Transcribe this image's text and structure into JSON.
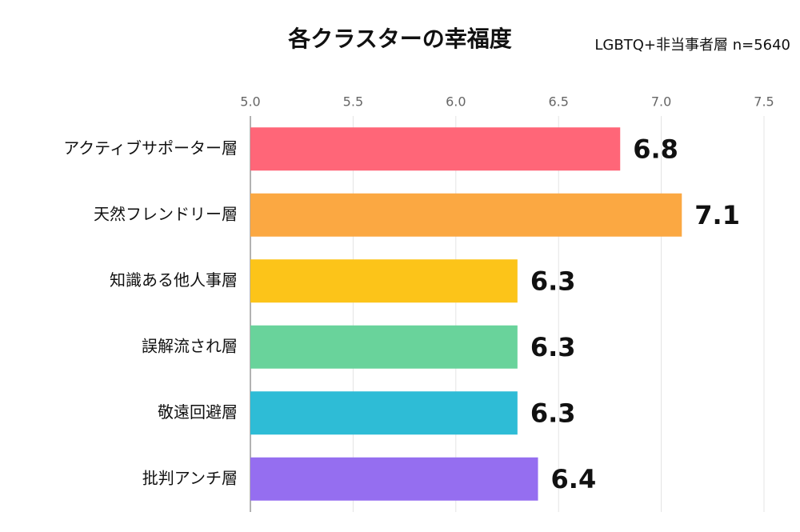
{
  "chart_data": {
    "type": "hbar",
    "title": "各クラスターの幸福度",
    "subtitle": "LGBTQ+非当事者層 n=5640",
    "categories": [
      "アクティブサポーター層",
      "天然フレンドリー層",
      "知識ある他人事層",
      "誤解流され層",
      "敬遠回避層",
      "批判アンチ層"
    ],
    "values": [
      6.8,
      7.1,
      6.3,
      6.3,
      6.3,
      6.4
    ],
    "colors": [
      "#ff6678",
      "#fba842",
      "#fcc419",
      "#69d39b",
      "#2ebcd6",
      "#956ef0"
    ],
    "xlim": [
      5,
      7.5
    ],
    "xticks": [
      {
        "value": 5,
        "label": "5.0"
      },
      5.5,
      {
        "value": 6,
        "label": "6.0"
      },
      6.5,
      {
        "value": 7,
        "label": "7.0"
      },
      7.5
    ],
    "grid": true
  }
}
